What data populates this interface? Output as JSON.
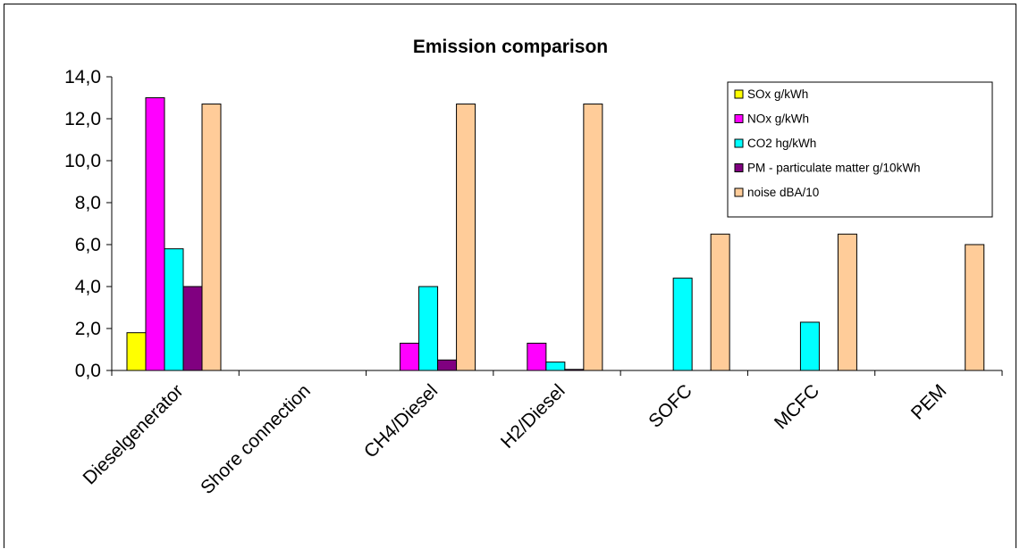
{
  "chart_data": {
    "type": "bar",
    "title": "Emission comparison",
    "xlabel": "",
    "ylabel": "",
    "ylim": [
      0,
      14
    ],
    "ytick_step": 2,
    "ytick_labels": [
      "0,0",
      "2,0",
      "4,0",
      "6,0",
      "8,0",
      "10,0",
      "12,0",
      "14,0"
    ],
    "grid": false,
    "legend_position": "top-right",
    "categories": [
      "Dieselgenerator",
      "Shore connection",
      "CH4/Diesel",
      "H2/Diesel",
      "SOFC",
      "MCFC",
      "PEM"
    ],
    "series": [
      {
        "name": "SOx g/kWh",
        "color": "#ffff00",
        "values": [
          1.8,
          0,
          0,
          0,
          0,
          0,
          0
        ]
      },
      {
        "name": "NOx g/kWh",
        "color": "#ff00ff",
        "values": [
          13.0,
          0,
          1.3,
          1.3,
          0,
          0,
          0
        ]
      },
      {
        "name": "CO2 hg/kWh",
        "color": "#00ffff",
        "values": [
          5.8,
          0,
          4.0,
          0.4,
          4.4,
          2.3,
          0
        ]
      },
      {
        "name": "PM - particulate matter  g/10kWh",
        "color": "#800080",
        "values": [
          4.0,
          0,
          0.5,
          0.05,
          0,
          0,
          0
        ]
      },
      {
        "name": "noise  dBA/10",
        "color": "#ffcc99",
        "values": [
          12.7,
          0,
          12.7,
          12.7,
          6.5,
          6.5,
          6.0
        ]
      }
    ]
  }
}
